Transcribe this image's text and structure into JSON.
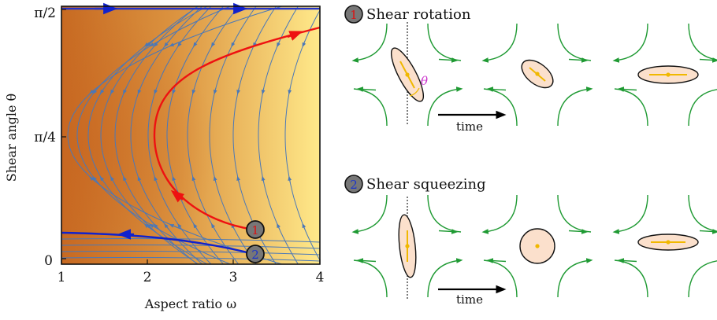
{
  "left_plot": {
    "xlabel": "Aspect ratio ω",
    "ylabel": "Shear angle θ",
    "xticks": [
      "1",
      "2",
      "3",
      "4"
    ],
    "yticks": [
      "0",
      "π/4",
      "π/2"
    ],
    "markers": [
      {
        "label": "1",
        "color": "#dd1111"
      },
      {
        "label": "2",
        "color": "#1a33cc"
      }
    ],
    "colors": {
      "background_dark": "#cc7426",
      "background_light": "#ffe97f",
      "streamlines": "#4a78b8",
      "trajectory_1": "#ee1111",
      "trajectory_2": "#1122cc",
      "top_line": "#2233cc"
    }
  },
  "panels": [
    {
      "number": "1",
      "title": "Shear rotation",
      "time_label": "time",
      "angle_label": "θ",
      "number_color": "#dd1111"
    },
    {
      "number": "2",
      "title": "Shear squeezing",
      "time_label": "time",
      "number_color": "#1a33cc"
    }
  ],
  "colors": {
    "flow_lines": "#1f9a33",
    "ellipse_fill": "#fbe0cc",
    "ellipse_stroke": "#111111",
    "axis_marker": "#f0b800",
    "angle": "#cc33cc",
    "badge_fill": "#777777"
  }
}
